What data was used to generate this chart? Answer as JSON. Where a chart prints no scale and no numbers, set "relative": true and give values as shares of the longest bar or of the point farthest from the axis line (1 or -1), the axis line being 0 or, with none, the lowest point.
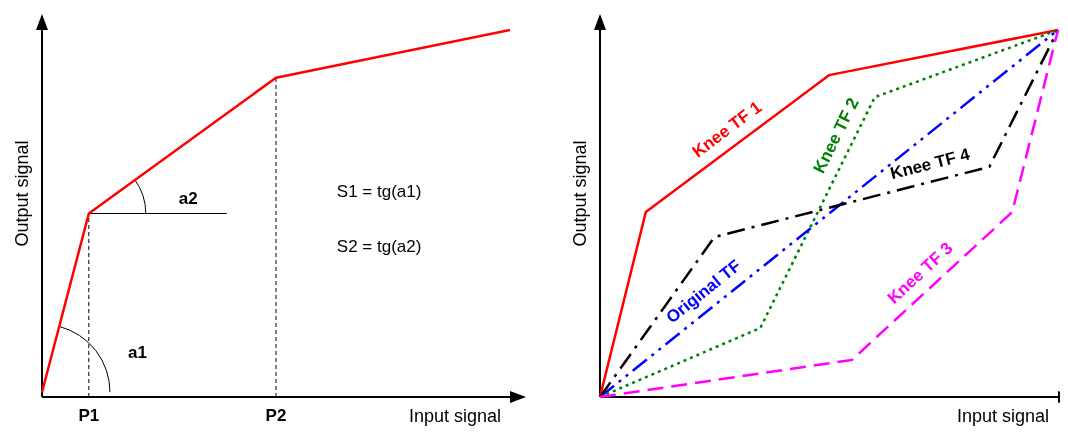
{
  "chart_data": [
    {
      "type": "line",
      "relative": true,
      "xlabel": "Input signal",
      "ylabel": "Output signal",
      "categories": [
        null,
        null,
        "P1",
        null,
        null,
        null,
        null,
        null,
        null,
        null,
        "P2",
        null,
        null,
        null,
        null,
        null,
        null,
        null,
        null,
        null,
        null
      ],
      "tick_labels": "x",
      "legend": false,
      "grid": "x",
      "marker": "none",
      "series": [
        {
          "color": "#ff0000",
          "line_style": "solid",
          "values": [
            0.013,
            null,
            0.5,
            null,
            null,
            null,
            null,
            null,
            null,
            null,
            0.87,
            null,
            null,
            null,
            null,
            null,
            null,
            null,
            null,
            null,
            1
          ]
        }
      ],
      "annotations": [
        "a1",
        "a2",
        "S1 = tg(a1)",
        "S2 = tg(a2)"
      ]
    },
    {
      "type": "line",
      "relative": true,
      "xlabel": "Input signal",
      "ylabel": "Output signal",
      "categories": [
        null,
        null,
        null,
        null,
        null,
        null,
        null,
        null,
        null,
        null,
        null,
        null,
        null,
        null,
        null,
        null,
        null,
        null,
        null,
        null,
        null
      ],
      "tick_labels": false,
      "legend": false,
      "marker": "none",
      "series": [
        {
          "name": "Knee TF 1",
          "color": "#ff0000",
          "line_style": "solid",
          "values": [
            0,
            null,
            0.504,
            null,
            null,
            null,
            null,
            null,
            null,
            null,
            0.877,
            null,
            null,
            null,
            null,
            null,
            null,
            null,
            null,
            null,
            1
          ]
        },
        {
          "name": "Knee TF 2",
          "color": "#008000",
          "line_style": "dotted",
          "values": [
            0,
            null,
            null,
            null,
            null,
            null,
            null,
            0.188,
            null,
            null,
            null,
            null,
            0.817,
            null,
            null,
            null,
            null,
            null,
            null,
            null,
            1
          ]
        },
        {
          "name": "Original TF",
          "color": "#0000ff",
          "line_style": "dashdotdot",
          "values": [
            0,
            null,
            null,
            null,
            null,
            null,
            null,
            null,
            null,
            null,
            null,
            null,
            null,
            null,
            null,
            null,
            null,
            null,
            null,
            null,
            1
          ]
        },
        {
          "name": "Knee TF 4",
          "color": "#000000",
          "line_style": "dashdot",
          "values": [
            0,
            null,
            null,
            null,
            null,
            0.436,
            null,
            null,
            null,
            null,
            null,
            null,
            null,
            null,
            null,
            null,
            null,
            0.627,
            null,
            null,
            1
          ]
        },
        {
          "name": "Knee TF 3",
          "color": "#ff00ff",
          "line_style": "dashed",
          "values": [
            0,
            null,
            null,
            null,
            null,
            null,
            null,
            null,
            null,
            null,
            null,
            0.101,
            null,
            null,
            null,
            null,
            null,
            null,
            0.504,
            null,
            1
          ]
        }
      ]
    }
  ]
}
